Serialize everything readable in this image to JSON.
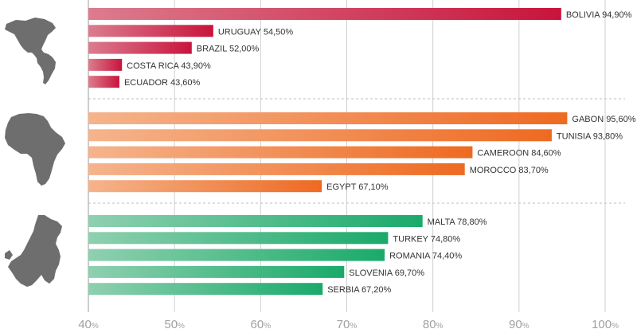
{
  "chart_data": {
    "type": "bar",
    "orientation": "horizontal",
    "xlim": [
      40,
      100
    ],
    "x_ticks": [
      {
        "value": 40,
        "label": "40",
        "unit": "%"
      },
      {
        "value": 50,
        "label": "50",
        "unit": "%"
      },
      {
        "value": 60,
        "label": "60",
        "unit": "%"
      },
      {
        "value": 70,
        "label": "70",
        "unit": "%"
      },
      {
        "value": 80,
        "label": "80",
        "unit": "%"
      },
      {
        "value": 90,
        "label": "90",
        "unit": "%"
      },
      {
        "value": 100,
        "label": "100",
        "unit": "%"
      }
    ],
    "grid": "vertical",
    "groups": [
      {
        "icon": "americas-map-icon",
        "color_light": "#dc7c8e",
        "color_dark": "#c8143c",
        "bars": [
          {
            "country": "BOLIVIA",
            "value": 94.9,
            "label": "94,90%"
          },
          {
            "country": "URUGUAY",
            "value": 54.5,
            "label": "54,50%"
          },
          {
            "country": "BRAZIL",
            "value": 52.0,
            "label": "52,00%"
          },
          {
            "country": "COSTA RICA",
            "value": 43.9,
            "label": "43,90%"
          },
          {
            "country": "ECUADOR",
            "value": 43.6,
            "label": "43,60%"
          }
        ]
      },
      {
        "icon": "africa-map-icon",
        "color_light": "#f5b48c",
        "color_dark": "#ee6a22",
        "bars": [
          {
            "country": "GABON",
            "value": 95.6,
            "label": "95,60%"
          },
          {
            "country": "TUNISIA",
            "value": 93.8,
            "label": "93,80%"
          },
          {
            "country": "CAMEROON",
            "value": 84.6,
            "label": "84,60%"
          },
          {
            "country": "MOROCCO",
            "value": 83.7,
            "label": "83,70%"
          },
          {
            "country": "EGYPT",
            "value": 67.1,
            "label": "67,10%"
          }
        ]
      },
      {
        "icon": "europe-map-icon",
        "color_light": "#8fd0b0",
        "color_dark": "#1aaa6a",
        "bars": [
          {
            "country": "MALTA",
            "value": 78.8,
            "label": "78,80%"
          },
          {
            "country": "TURKEY",
            "value": 74.8,
            "label": "74,80%"
          },
          {
            "country": "ROMANIA",
            "value": 74.4,
            "label": "74,40%"
          },
          {
            "country": "SLOVENIA",
            "value": 69.7,
            "label": "69,70%"
          },
          {
            "country": "SERBIA",
            "value": 67.2,
            "label": "67,20%"
          }
        ]
      }
    ]
  }
}
